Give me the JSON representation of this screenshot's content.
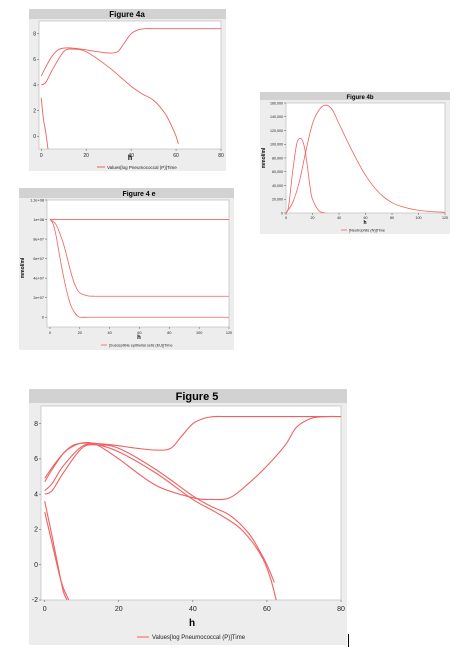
{
  "charts": {
    "fig4a": {
      "title": "Figure 4a",
      "xlabel": "h",
      "ylabel": "",
      "legend": "Values[log Pneumococcal (P)]Time",
      "color": "#f06060"
    },
    "fig4b": {
      "title": "Figure 4b",
      "xlabel": "h",
      "ylabel": "mmol/ml",
      "legend": "[Neutrophils (N)]Time",
      "color": "#f06060"
    },
    "fig4e": {
      "title": "Figure 4 e",
      "xlabel": "h",
      "ylabel": "mmol/ml",
      "legend": "[Susceptible epithelial cells (EU)]Time",
      "color": "#f06060"
    },
    "fig5": {
      "title": "Figure 5",
      "xlabel": "h",
      "ylabel": "",
      "legend": "Values[log Pneumococcal (P)]Time",
      "color": "#f06060"
    }
  },
  "chart_data": [
    {
      "id": "fig4a",
      "type": "line",
      "title": "Figure 4a",
      "xlabel": "h",
      "xlim": [
        -1,
        80
      ],
      "ylim": [
        -1,
        9
      ],
      "xticks": [
        0,
        20,
        40,
        60,
        80
      ],
      "yticks": [
        0,
        2,
        4,
        6,
        8
      ],
      "ytick_labels": [
        "0",
        "2",
        "4",
        "6",
        "8"
      ],
      "legend": [
        "Values[log Pneumococcal (P)]Time"
      ],
      "series": [
        {
          "x": [
            0,
            2,
            5,
            8,
            12,
            18,
            25,
            30,
            34,
            37,
            40,
            43,
            46,
            50,
            60,
            70,
            80
          ],
          "y": [
            4.7,
            5.4,
            6.3,
            6.8,
            6.9,
            6.8,
            6.6,
            6.5,
            6.6,
            7.3,
            8.0,
            8.3,
            8.4,
            8.4,
            8.4,
            8.4,
            8.4
          ]
        },
        {
          "x": [
            0,
            2,
            5,
            10,
            14,
            20,
            30,
            40,
            45,
            50,
            55,
            58,
            60,
            61
          ],
          "y": [
            4.0,
            4.2,
            5.2,
            6.6,
            6.8,
            6.6,
            5.4,
            3.9,
            3.3,
            2.8,
            1.8,
            0.8,
            0.0,
            -0.6
          ]
        },
        {
          "x": [
            0,
            1,
            2,
            3
          ],
          "y": [
            3.0,
            1.3,
            0.3,
            -1.0
          ]
        }
      ]
    },
    {
      "id": "fig4b",
      "type": "line",
      "title": "Figure 4b",
      "xlabel": "h",
      "ylabel": "mmol/ml",
      "xlim": [
        0,
        120
      ],
      "ylim": [
        0,
        160000
      ],
      "xticks": [
        0,
        20,
        40,
        60,
        80,
        100,
        120
      ],
      "yticks": [
        0,
        20000,
        40000,
        60000,
        80000,
        100000,
        120000,
        140000,
        160000
      ],
      "ytick_labels": [
        "0",
        "20,000",
        "40,000",
        "60,000",
        "80,000",
        "100,000",
        "120,000",
        "140,000",
        "160,000"
      ],
      "legend": [
        "[Neutrophils (N)]Time"
      ],
      "series": [
        {
          "x": [
            0,
            2,
            5,
            8,
            10,
            12,
            14,
            16,
            18,
            20,
            25,
            30
          ],
          "y": [
            0,
            10000,
            60000,
            100000,
            108000,
            107000,
            95000,
            70000,
            40000,
            20000,
            3000,
            0
          ]
        },
        {
          "x": [
            0,
            5,
            10,
            15,
            20,
            25,
            30,
            35,
            40,
            50,
            60,
            70,
            80,
            90,
            100,
            110,
            120
          ],
          "y": [
            0,
            15000,
            45000,
            90000,
            130000,
            150000,
            157000,
            150000,
            130000,
            90000,
            55000,
            30000,
            15000,
            8000,
            4000,
            2000,
            1000
          ]
        }
      ]
    },
    {
      "id": "fig4e",
      "type": "line",
      "title": "Figure 4 e",
      "xlabel": "h",
      "ylabel": "mmol/ml",
      "xlim": [
        -2,
        120
      ],
      "ylim": [
        -10000000.0,
        120000000.0
      ],
      "xticks": [
        0,
        20,
        40,
        60,
        80,
        100,
        120
      ],
      "yticks": [
        0,
        20000000.0,
        40000000.0,
        60000000.0,
        80000000.0,
        100000000.0,
        120000000.0
      ],
      "ytick_labels": [
        "0",
        "2e+07",
        "4e+07",
        "6e+07",
        "8e+07",
        "1e+08",
        "1.2e+08"
      ],
      "legend": [
        "[Susceptible epithelial cells (EU)]Time"
      ],
      "series": [
        {
          "x": [
            0,
            120
          ],
          "y": [
            100000000.0,
            100000000.0
          ]
        },
        {
          "x": [
            0,
            4,
            8,
            10,
            12,
            14,
            16,
            18,
            20,
            25,
            30,
            40,
            60,
            80,
            100,
            120
          ],
          "y": [
            100000000.0,
            95000000.0,
            80000000.0,
            70000000.0,
            58000000.0,
            46000000.0,
            36000000.0,
            29000000.0,
            25000000.0,
            22000000.0,
            21500000.0,
            21500000.0,
            21500000.0,
            21500000.0,
            21500000.0,
            21500000.0
          ]
        },
        {
          "x": [
            0,
            2,
            4,
            6,
            8,
            10,
            12,
            14,
            16,
            18,
            20,
            25,
            30,
            120
          ],
          "y": [
            100000000.0,
            96000000.0,
            84000000.0,
            67000000.0,
            50000000.0,
            35000000.0,
            22000000.0,
            12000000.0,
            6000000.0,
            2000000.0,
            0,
            0,
            0,
            0
          ]
        }
      ]
    },
    {
      "id": "fig5",
      "type": "line",
      "title": "Figure 5",
      "xlabel": "h",
      "xlim": [
        -1,
        80
      ],
      "ylim": [
        -2,
        9
      ],
      "xticks": [
        0,
        20,
        40,
        60,
        80
      ],
      "yticks": [
        -2,
        0,
        2,
        4,
        6,
        8
      ],
      "ytick_labels": [
        "-2",
        "0",
        "2",
        "4",
        "6",
        "8"
      ],
      "legend": [
        "Values[log Pneumococcal (P)]Time"
      ],
      "series": [
        {
          "x": [
            0,
            2,
            5,
            8,
            12,
            18,
            25,
            30,
            34,
            37,
            40,
            43,
            46,
            50,
            60,
            70,
            80
          ],
          "y": [
            4.7,
            5.4,
            6.3,
            6.8,
            6.9,
            6.8,
            6.6,
            6.5,
            6.6,
            7.3,
            8.0,
            8.3,
            8.4,
            8.4,
            8.4,
            8.4,
            8.4
          ]
        },
        {
          "x": [
            0,
            3,
            6,
            10,
            14,
            20,
            30,
            40,
            45,
            50,
            55,
            60,
            65,
            68,
            72,
            76,
            80
          ],
          "y": [
            4.9,
            5.8,
            6.5,
            6.9,
            6.8,
            6.0,
            4.5,
            3.8,
            3.7,
            3.8,
            4.6,
            5.6,
            6.8,
            7.8,
            8.3,
            8.4,
            8.4
          ]
        },
        {
          "x": [
            0,
            2,
            5,
            10,
            14,
            20,
            30,
            40,
            45,
            50,
            55,
            58,
            60,
            62
          ],
          "y": [
            4.0,
            4.2,
            5.2,
            6.6,
            6.8,
            6.6,
            5.4,
            3.9,
            3.3,
            2.8,
            1.8,
            0.8,
            0.0,
            -1.0
          ]
        },
        {
          "x": [
            0,
            2,
            5,
            10,
            14,
            20,
            30,
            40,
            46,
            52,
            56,
            59,
            61,
            62.5
          ],
          "y": [
            4.2,
            4.6,
            5.6,
            6.7,
            6.8,
            6.4,
            5.2,
            3.7,
            3.0,
            2.2,
            1.3,
            0.3,
            -0.8,
            -2.0
          ]
        },
        {
          "x": [
            0,
            2,
            4,
            5,
            6
          ],
          "y": [
            3.6,
            1.6,
            -0.5,
            -1.5,
            -2.0
          ]
        },
        {
          "x": [
            0,
            2,
            4,
            5,
            6.5
          ],
          "y": [
            3.0,
            1.2,
            -0.6,
            -1.3,
            -2.0
          ]
        }
      ]
    }
  ]
}
